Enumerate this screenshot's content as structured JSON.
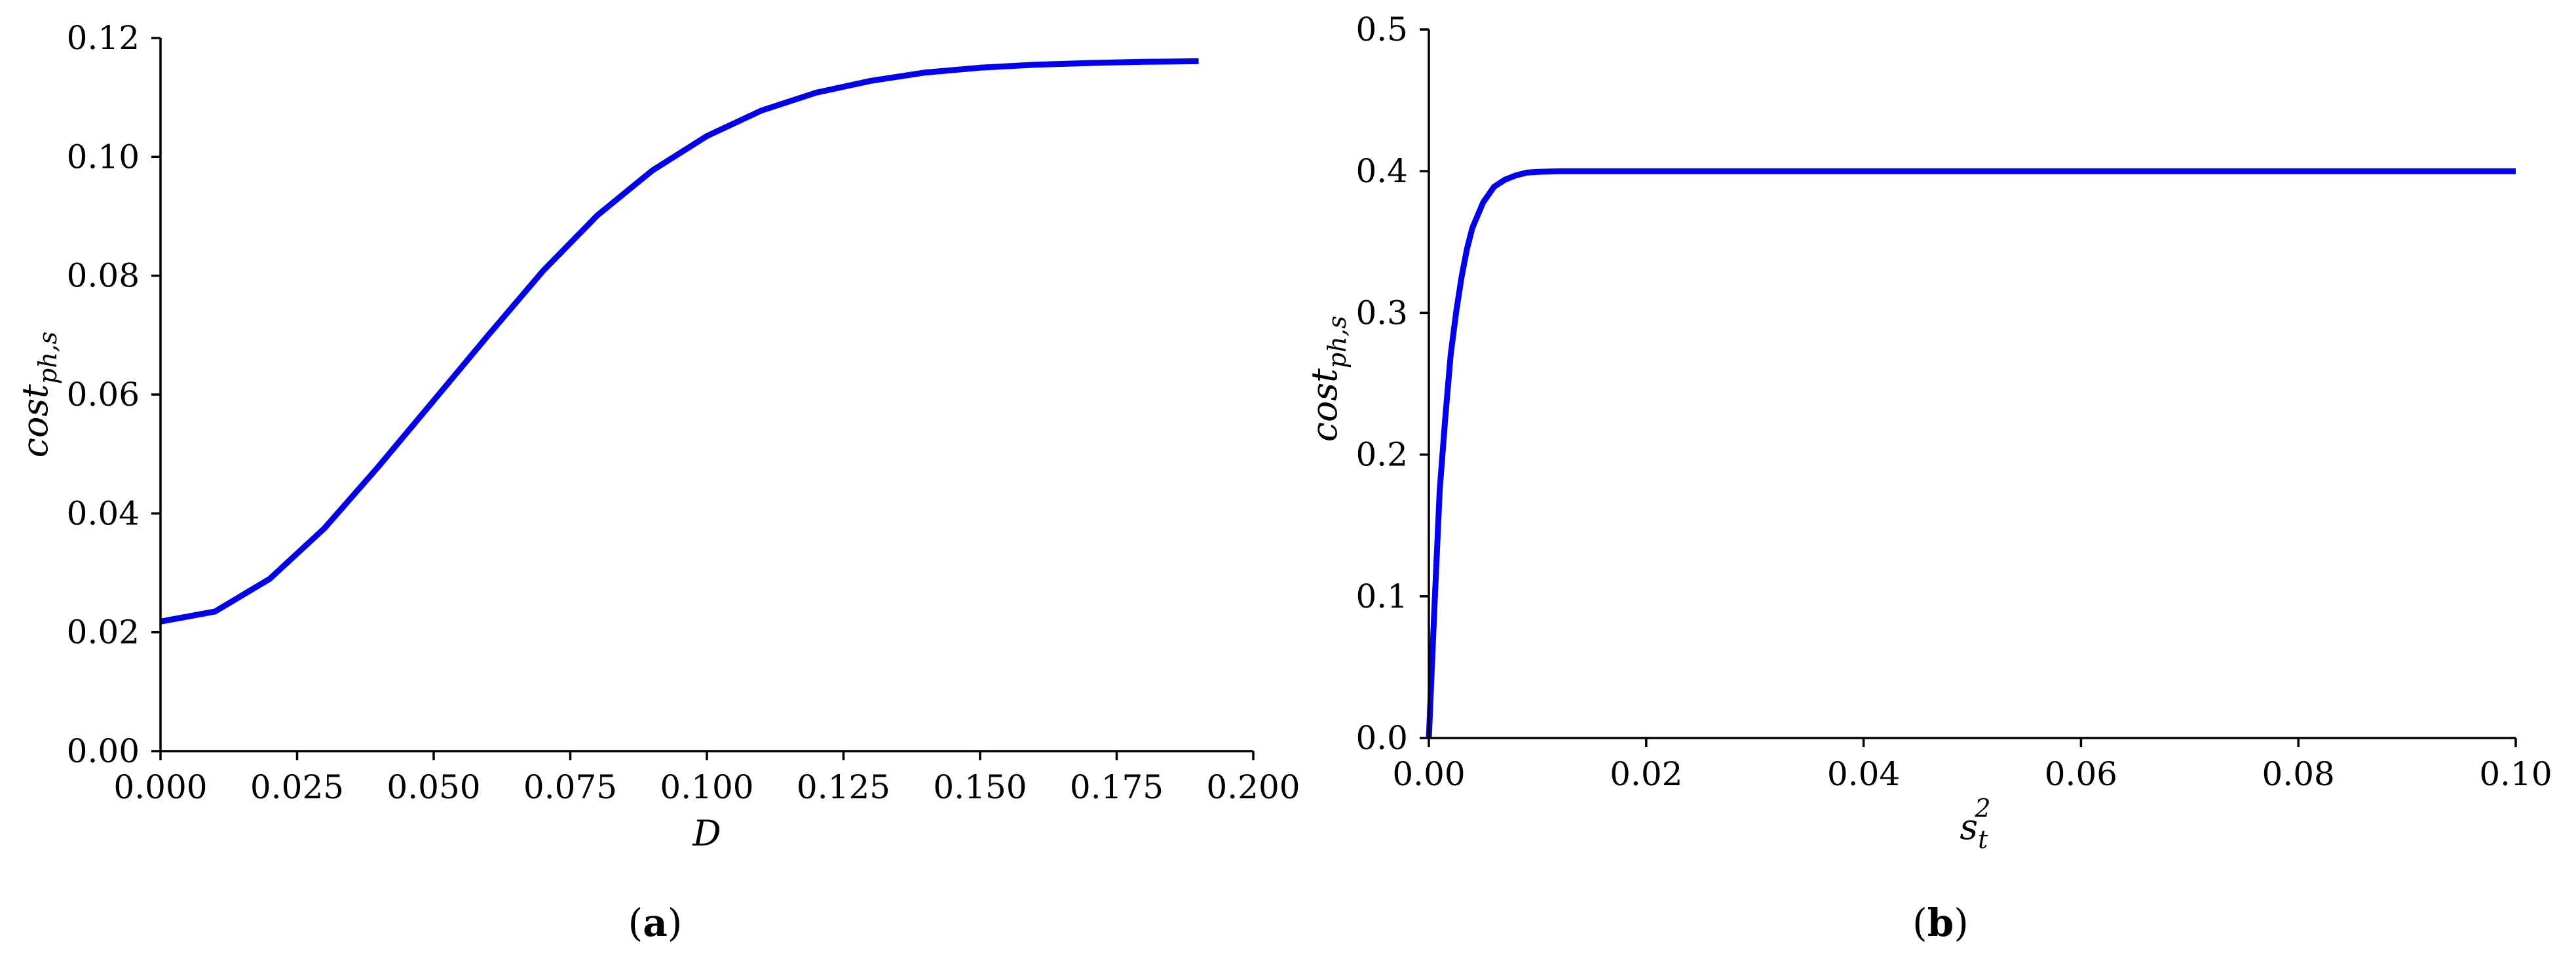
{
  "chart_data": [
    {
      "type": "line",
      "panel_label": "a",
      "xlabel": "D",
      "ylabel": {
        "base": "cost",
        "sub": "ph,s"
      },
      "xlim": [
        0.0,
        0.2
      ],
      "ylim": [
        0.0,
        0.12
      ],
      "xticks": [
        "0.000",
        "0.025",
        "0.050",
        "0.075",
        "0.100",
        "0.125",
        "0.150",
        "0.175",
        "0.200"
      ],
      "yticks": [
        "0.00",
        "0.02",
        "0.04",
        "0.06",
        "0.08",
        "0.10",
        "0.12"
      ],
      "grid": false,
      "series": [
        {
          "color": "#0000ee",
          "x": [
            0.0,
            0.01,
            0.02,
            0.03,
            0.04,
            0.05,
            0.06,
            0.07,
            0.08,
            0.09,
            0.1,
            0.11,
            0.12,
            0.13,
            0.14,
            0.15,
            0.16,
            0.17,
            0.18,
            0.19
          ],
          "y": [
            0.0218,
            0.0235,
            0.029,
            0.0375,
            0.048,
            0.059,
            0.07,
            0.0808,
            0.0902,
            0.0977,
            0.1035,
            0.1078,
            0.1108,
            0.1128,
            0.1142,
            0.115,
            0.1155,
            0.1158,
            0.116,
            0.1161
          ]
        }
      ]
    },
    {
      "type": "line",
      "panel_label": "b",
      "xlabel": {
        "base": "s",
        "sub": "t",
        "sup": "2"
      },
      "ylabel": {
        "base": "cost",
        "sub": "ph,s"
      },
      "xlim": [
        0.0,
        0.1
      ],
      "ylim": [
        0.0,
        0.5
      ],
      "xticks": [
        "0.00",
        "0.02",
        "0.04",
        "0.06",
        "0.08",
        "0.10"
      ],
      "yticks": [
        "0.0",
        "0.1",
        "0.2",
        "0.3",
        "0.4",
        "0.5"
      ],
      "grid": false,
      "series": [
        {
          "color": "#0000ee",
          "x": [
            0.0,
            0.0005,
            0.001,
            0.0015,
            0.002,
            0.0025,
            0.003,
            0.0035,
            0.004,
            0.005,
            0.006,
            0.007,
            0.008,
            0.009,
            0.01,
            0.012,
            0.015,
            0.02,
            0.04,
            0.06,
            0.08,
            0.1
          ],
          "y": [
            0.0,
            0.09,
            0.175,
            0.225,
            0.27,
            0.3,
            0.325,
            0.345,
            0.36,
            0.378,
            0.389,
            0.394,
            0.397,
            0.399,
            0.3995,
            0.4,
            0.4,
            0.4,
            0.4,
            0.4,
            0.4,
            0.4
          ]
        }
      ]
    }
  ]
}
